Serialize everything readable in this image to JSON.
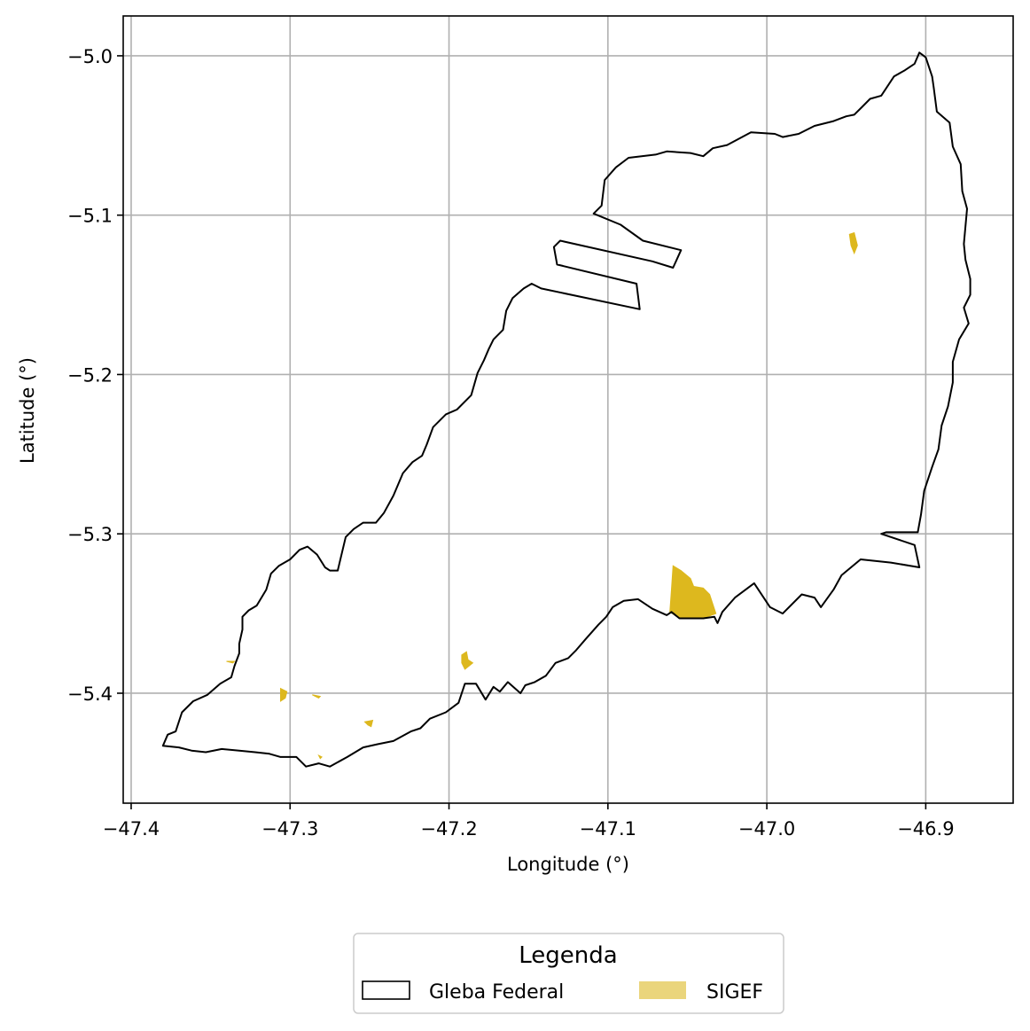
{
  "chart_data": {
    "type": "map",
    "xlabel": "Longitude (°)",
    "ylabel": "Latitude (°)",
    "xlim": [
      -47.405,
      -46.845
    ],
    "ylim": [
      -5.469,
      -4.975
    ],
    "x_ticks": [
      -47.4,
      -47.3,
      -47.2,
      -47.1,
      -47.0,
      -46.9
    ],
    "x_tick_labels": [
      "−47.4",
      "−47.3",
      "−47.2",
      "−47.1",
      "−47.0",
      "−46.9"
    ],
    "y_ticks": [
      -5.0,
      -5.1,
      -5.2,
      -5.3,
      -5.4
    ],
    "y_tick_labels": [
      "−5.0",
      "−5.1",
      "−5.2",
      "−5.3",
      "−5.4"
    ],
    "grid": true,
    "legend": {
      "title": "Legenda",
      "placement": "bottom-center",
      "entries": [
        "Gleba Federal",
        "SIGEF"
      ]
    },
    "colors": {
      "gleba_edge": "#000000",
      "sigef_fill": "#DDB81E",
      "sigef_legend": "#EAD57C",
      "grid": "#B0B0B0"
    },
    "gleba_federal": {
      "outer": [
        [
          -47.38,
          -5.433
        ],
        [
          -47.377,
          -5.426
        ],
        [
          -47.372,
          -5.424
        ],
        [
          -47.368,
          -5.412
        ],
        [
          -47.361,
          -5.405
        ],
        [
          -47.352,
          -5.401
        ],
        [
          -47.344,
          -5.394
        ],
        [
          -47.337,
          -5.39
        ],
        [
          -47.335,
          -5.383
        ],
        [
          -47.332,
          -5.375
        ],
        [
          -47.332,
          -5.369
        ],
        [
          -47.33,
          -5.36
        ],
        [
          -47.33,
          -5.352
        ],
        [
          -47.326,
          -5.348
        ],
        [
          -47.321,
          -5.345
        ],
        [
          -47.315,
          -5.335
        ],
        [
          -47.312,
          -5.325
        ],
        [
          -47.307,
          -5.32
        ],
        [
          -47.3,
          -5.316
        ],
        [
          -47.294,
          -5.31
        ],
        [
          -47.289,
          -5.308
        ],
        [
          -47.283,
          -5.313
        ],
        [
          -47.278,
          -5.321
        ],
        [
          -47.275,
          -5.323
        ],
        [
          -47.27,
          -5.323
        ],
        [
          -47.265,
          -5.302
        ],
        [
          -47.26,
          -5.297
        ],
        [
          -47.254,
          -5.293
        ],
        [
          -47.246,
          -5.293
        ],
        [
          -47.241,
          -5.287
        ],
        [
          -47.235,
          -5.276
        ],
        [
          -47.229,
          -5.262
        ],
        [
          -47.223,
          -5.255
        ],
        [
          -47.217,
          -5.251
        ],
        [
          -47.214,
          -5.244
        ],
        [
          -47.21,
          -5.233
        ],
        [
          -47.202,
          -5.225
        ],
        [
          -47.195,
          -5.222
        ],
        [
          -47.186,
          -5.213
        ],
        [
          -47.182,
          -5.199
        ],
        [
          -47.178,
          -5.191
        ],
        [
          -47.175,
          -5.184
        ],
        [
          -47.172,
          -5.178
        ],
        [
          -47.166,
          -5.172
        ],
        [
          -47.164,
          -5.16
        ],
        [
          -47.16,
          -5.152
        ],
        [
          -47.153,
          -5.146
        ],
        [
          -47.148,
          -5.143
        ],
        [
          -47.142,
          -5.146
        ],
        [
          -47.08,
          -5.159
        ],
        [
          -47.082,
          -5.143
        ],
        [
          -47.132,
          -5.131
        ],
        [
          -47.134,
          -5.12
        ],
        [
          -47.13,
          -5.116
        ],
        [
          -47.072,
          -5.129
        ],
        [
          -47.059,
          -5.133
        ],
        [
          -47.054,
          -5.122
        ],
        [
          -47.078,
          -5.116
        ],
        [
          -47.092,
          -5.106
        ],
        [
          -47.109,
          -5.099
        ],
        [
          -47.104,
          -5.094
        ],
        [
          -47.102,
          -5.078
        ],
        [
          -47.095,
          -5.07
        ],
        [
          -47.087,
          -5.064
        ],
        [
          -47.07,
          -5.062
        ],
        [
          -47.063,
          -5.06
        ],
        [
          -47.048,
          -5.061
        ],
        [
          -47.04,
          -5.063
        ],
        [
          -47.034,
          -5.058
        ],
        [
          -47.025,
          -5.056
        ],
        [
          -47.01,
          -5.048
        ],
        [
          -46.995,
          -5.049
        ],
        [
          -46.99,
          -5.051
        ],
        [
          -46.98,
          -5.049
        ],
        [
          -46.97,
          -5.044
        ],
        [
          -46.958,
          -5.041
        ],
        [
          -46.95,
          -5.038
        ],
        [
          -46.945,
          -5.037
        ],
        [
          -46.94,
          -5.032
        ],
        [
          -46.935,
          -5.027
        ],
        [
          -46.928,
          -5.025
        ],
        [
          -46.924,
          -5.019
        ],
        [
          -46.92,
          -5.013
        ],
        [
          -46.913,
          -5.009
        ],
        [
          -46.907,
          -5.005
        ],
        [
          -46.904,
          -4.998
        ],
        [
          -46.9,
          -5.001
        ],
        [
          -46.896,
          -5.013
        ],
        [
          -46.895,
          -5.02
        ],
        [
          -46.893,
          -5.035
        ],
        [
          -46.885,
          -5.042
        ],
        [
          -46.883,
          -5.057
        ],
        [
          -46.878,
          -5.068
        ],
        [
          -46.877,
          -5.085
        ],
        [
          -46.874,
          -5.096
        ],
        [
          -46.875,
          -5.107
        ],
        [
          -46.876,
          -5.118
        ],
        [
          -46.875,
          -5.128
        ],
        [
          -46.872,
          -5.14
        ],
        [
          -46.872,
          -5.15
        ],
        [
          -46.876,
          -5.158
        ],
        [
          -46.873,
          -5.168
        ],
        [
          -46.879,
          -5.178
        ],
        [
          -46.883,
          -5.192
        ],
        [
          -46.883,
          -5.205
        ],
        [
          -46.886,
          -5.22
        ],
        [
          -46.89,
          -5.232
        ],
        [
          -46.892,
          -5.247
        ],
        [
          -46.896,
          -5.258
        ],
        [
          -46.901,
          -5.273
        ],
        [
          -46.903,
          -5.288
        ],
        [
          -46.905,
          -5.299
        ],
        [
          -46.925,
          -5.299
        ],
        [
          -46.928,
          -5.3
        ],
        [
          -46.907,
          -5.307
        ],
        [
          -46.904,
          -5.321
        ],
        [
          -46.922,
          -5.318
        ],
        [
          -46.941,
          -5.316
        ],
        [
          -46.953,
          -5.326
        ],
        [
          -46.958,
          -5.335
        ],
        [
          -46.966,
          -5.346
        ],
        [
          -46.97,
          -5.34
        ],
        [
          -46.978,
          -5.338
        ],
        [
          -46.99,
          -5.35
        ],
        [
          -46.998,
          -5.346
        ],
        [
          -47.008,
          -5.331
        ],
        [
          -47.02,
          -5.34
        ],
        [
          -47.028,
          -5.349
        ],
        [
          -47.031,
          -5.356
        ],
        [
          -47.033,
          -5.352
        ],
        [
          -47.04,
          -5.353
        ],
        [
          -47.055,
          -5.353
        ],
        [
          -47.06,
          -5.349
        ],
        [
          -47.063,
          -5.351
        ],
        [
          -47.072,
          -5.347
        ],
        [
          -47.081,
          -5.341
        ],
        [
          -47.09,
          -5.342
        ],
        [
          -47.097,
          -5.346
        ],
        [
          -47.101,
          -5.352
        ],
        [
          -47.106,
          -5.357
        ],
        [
          -47.114,
          -5.366
        ],
        [
          -47.12,
          -5.373
        ],
        [
          -47.125,
          -5.378
        ],
        [
          -47.133,
          -5.381
        ],
        [
          -47.139,
          -5.389
        ],
        [
          -47.146,
          -5.393
        ],
        [
          -47.152,
          -5.395
        ],
        [
          -47.155,
          -5.4
        ],
        [
          -47.163,
          -5.393
        ],
        [
          -47.168,
          -5.399
        ],
        [
          -47.172,
          -5.396
        ],
        [
          -47.177,
          -5.404
        ],
        [
          -47.183,
          -5.394
        ],
        [
          -47.19,
          -5.394
        ],
        [
          -47.194,
          -5.406
        ],
        [
          -47.202,
          -5.412
        ],
        [
          -47.212,
          -5.416
        ],
        [
          -47.218,
          -5.422
        ],
        [
          -47.224,
          -5.424
        ],
        [
          -47.235,
          -5.43
        ],
        [
          -47.245,
          -5.432
        ],
        [
          -47.254,
          -5.434
        ],
        [
          -47.264,
          -5.44
        ],
        [
          -47.275,
          -5.446
        ],
        [
          -47.282,
          -5.444
        ],
        [
          -47.29,
          -5.446
        ],
        [
          -47.296,
          -5.44
        ],
        [
          -47.306,
          -5.44
        ],
        [
          -47.313,
          -5.438
        ],
        [
          -47.322,
          -5.437
        ],
        [
          -47.332,
          -5.436
        ],
        [
          -47.343,
          -5.435
        ],
        [
          -47.353,
          -5.437
        ],
        [
          -47.362,
          -5.436
        ],
        [
          -47.37,
          -5.434
        ],
        [
          -47.38,
          -5.433
        ]
      ]
    },
    "sigef_parcels": [
      [
        [
          -47.059,
          -5.32
        ],
        [
          -47.054,
          -5.323
        ],
        [
          -47.048,
          -5.328
        ],
        [
          -47.046,
          -5.333
        ],
        [
          -47.04,
          -5.334
        ],
        [
          -47.036,
          -5.338
        ],
        [
          -47.032,
          -5.35
        ],
        [
          -47.04,
          -5.353
        ],
        [
          -47.055,
          -5.353
        ],
        [
          -47.061,
          -5.349
        ],
        [
          -47.06,
          -5.335
        ]
      ],
      [
        [
          -46.948,
          -5.112
        ],
        [
          -46.945,
          -5.111
        ],
        [
          -46.943,
          -5.119
        ],
        [
          -46.945,
          -5.124
        ],
        [
          -46.947,
          -5.119
        ]
      ],
      [
        [
          -47.192,
          -5.376
        ],
        [
          -47.189,
          -5.374
        ],
        [
          -47.188,
          -5.379
        ],
        [
          -47.185,
          -5.381
        ],
        [
          -47.19,
          -5.385
        ],
        [
          -47.192,
          -5.381
        ]
      ],
      [
        [
          -47.306,
          -5.397
        ],
        [
          -47.302,
          -5.399
        ],
        [
          -47.303,
          -5.403
        ],
        [
          -47.306,
          -5.405
        ]
      ],
      [
        [
          -47.253,
          -5.418
        ],
        [
          -47.248,
          -5.417
        ],
        [
          -47.249,
          -5.421
        ],
        [
          -47.251,
          -5.42
        ]
      ],
      [
        [
          -47.286,
          -5.401
        ],
        [
          -47.281,
          -5.402
        ],
        [
          -47.282,
          -5.403
        ]
      ],
      [
        [
          -47.34,
          -5.38
        ],
        [
          -47.335,
          -5.38
        ],
        [
          -47.336,
          -5.381
        ]
      ],
      [
        [
          -47.282,
          -5.439
        ],
        [
          -47.28,
          -5.44
        ],
        [
          -47.281,
          -5.441
        ]
      ]
    ]
  }
}
